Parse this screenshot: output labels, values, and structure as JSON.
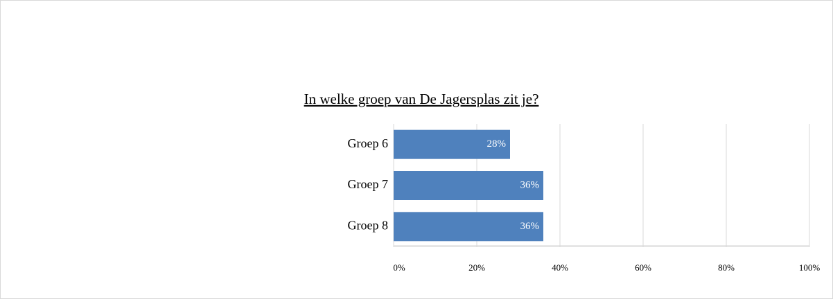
{
  "chart_data": {
    "type": "bar",
    "orientation": "horizontal",
    "title": "In welke groep van De Jagersplas zit je?",
    "categories": [
      "Groep 6",
      "Groep 7",
      "Groep 8"
    ],
    "values": [
      28,
      36,
      36
    ],
    "value_labels": [
      "28%",
      "36%",
      "36%"
    ],
    "color": "#4f81bd",
    "xlim": [
      0,
      100
    ],
    "xticks": [
      {
        "value": 0,
        "label": "0%"
      },
      {
        "value": 20,
        "label": "20%"
      },
      {
        "value": 40,
        "label": "40%"
      },
      {
        "value": 60,
        "label": "60%"
      },
      {
        "value": 80,
        "label": "80%"
      },
      {
        "value": 100,
        "label": "100%"
      }
    ],
    "grid": true
  }
}
